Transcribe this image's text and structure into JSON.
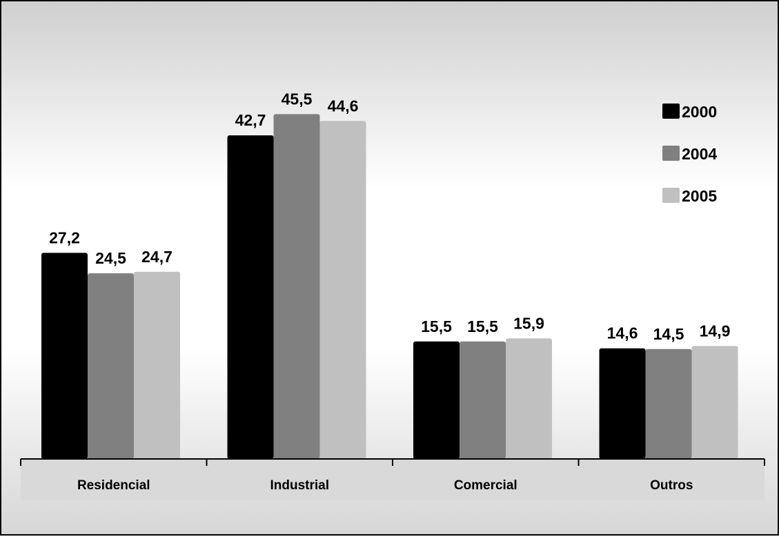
{
  "chart_data": {
    "type": "bar",
    "title": "",
    "xlabel": "",
    "ylabel": "",
    "categories": [
      "Residencial",
      "Industrial",
      "Comercial",
      "Outros"
    ],
    "series": [
      {
        "name": "2000",
        "values": [
          27.2,
          42.7,
          15.5,
          14.6
        ],
        "labels": [
          "27,2",
          "42,7",
          "15,5",
          "14,6"
        ],
        "color": "#000000"
      },
      {
        "name": "2004",
        "values": [
          24.5,
          45.5,
          15.5,
          14.5
        ],
        "labels": [
          "24,5",
          "45,5",
          "15,5",
          "14,5"
        ],
        "color": "#808080"
      },
      {
        "name": "2005",
        "values": [
          24.7,
          44.6,
          15.9,
          14.9
        ],
        "labels": [
          "24,7",
          "44,6",
          "15,9",
          "14,9"
        ],
        "color": "#c0c0c0"
      }
    ],
    "ylim": [
      0,
      50
    ],
    "grid": false,
    "legend_position": "top-right",
    "data_labels": true
  }
}
